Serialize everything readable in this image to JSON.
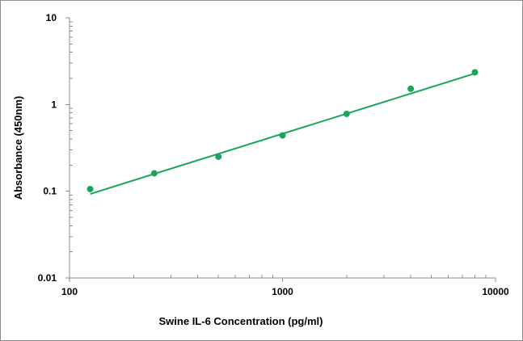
{
  "chart_data": {
    "type": "scatter",
    "xlabel": "Swine IL-6 Concentration (pg/ml)",
    "ylabel": "Absorbance (450nm)",
    "x_scale": "log",
    "y_scale": "log",
    "xlim": [
      100,
      10000
    ],
    "ylim": [
      0.01,
      10
    ],
    "x_ticks": [
      "100",
      "1000",
      "10000"
    ],
    "y_ticks": [
      "10",
      "1",
      "0.1",
      "0.01"
    ],
    "grid": false,
    "series": [
      {
        "points": [
          {
            "x": 125,
            "y": 0.106
          },
          {
            "x": 250,
            "y": 0.161
          },
          {
            "x": 500,
            "y": 0.25
          },
          {
            "x": 1000,
            "y": 0.44
          },
          {
            "x": 2000,
            "y": 0.78
          },
          {
            "x": 4000,
            "y": 1.52
          },
          {
            "x": 8000,
            "y": 2.35
          }
        ],
        "color": "#1aa55a"
      }
    ],
    "trendline": {
      "type": "power",
      "x_range": [
        125,
        8000
      ],
      "y_start": 0.093,
      "y_end": 2.28,
      "color": "#1aa55a"
    }
  }
}
